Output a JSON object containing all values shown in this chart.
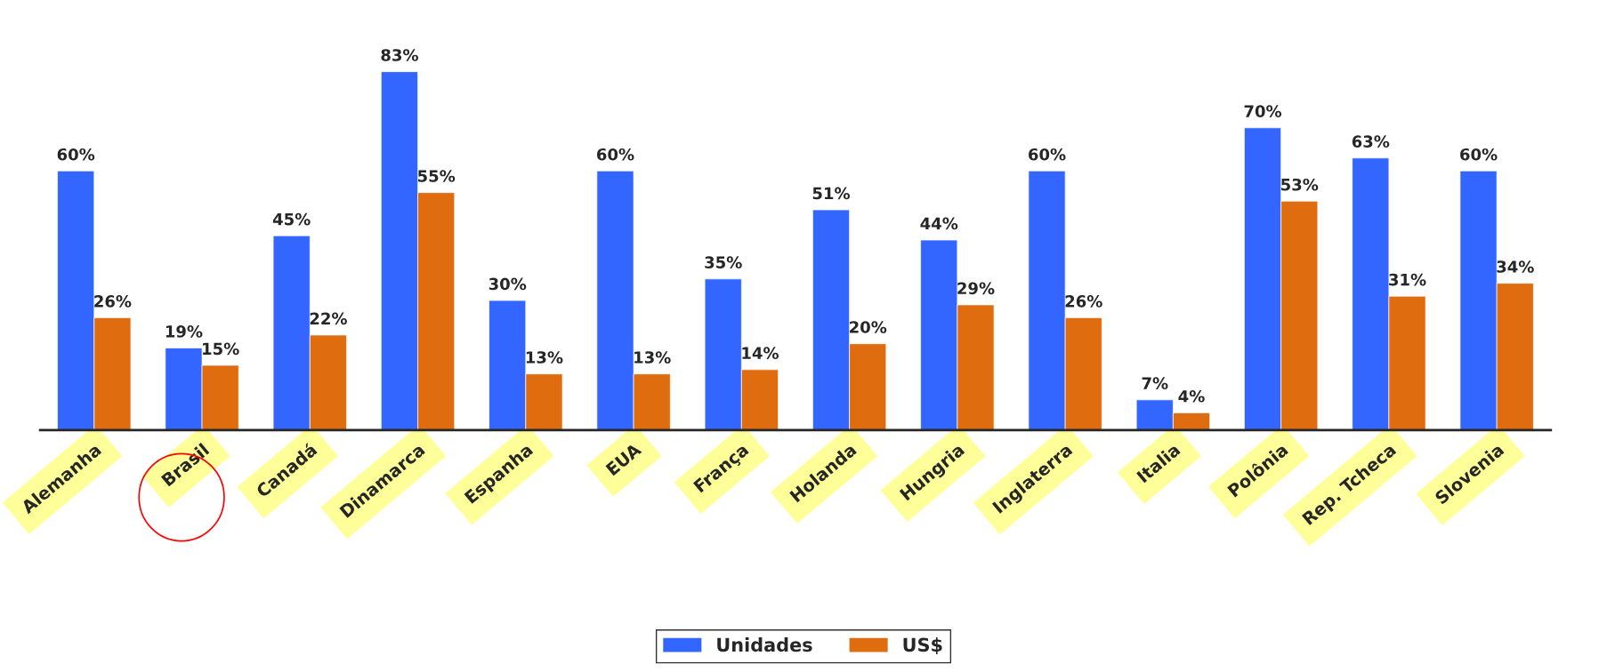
{
  "chart_data": {
    "type": "bar",
    "categories": [
      "Alemanha",
      "Brasil",
      "Canadá",
      "Dinamarca",
      "Espanha",
      "EUA",
      "França",
      "Holanda",
      "Hungria",
      "Inglaterra",
      "Italia",
      "Polônia",
      "Rep. Tcheca",
      "Slovenia"
    ],
    "series": [
      {
        "name": "Unidades",
        "color": "#3366ff",
        "values": [
          60,
          19,
          45,
          83,
          30,
          60,
          35,
          51,
          44,
          60,
          7,
          70,
          63,
          60
        ],
        "value_labels": [
          "60%",
          "19%",
          "45%",
          "83%",
          "30%",
          "60%",
          "35%",
          "51%",
          "44%",
          "60%",
          "7%",
          "70%",
          "63%",
          "60%"
        ]
      },
      {
        "name": "US$",
        "color": "#e06c10",
        "values": [
          26,
          15,
          22,
          55,
          13,
          13,
          14,
          20,
          29,
          26,
          4,
          53,
          31,
          34
        ],
        "value_labels": [
          "26%",
          "15%",
          "22%",
          "55%",
          "13%",
          "13%",
          "14%",
          "20%",
          "29%",
          "26%",
          "4%",
          "53%",
          "31%",
          "34%"
        ]
      }
    ],
    "legend": "bottom",
    "grid": false
  }
}
